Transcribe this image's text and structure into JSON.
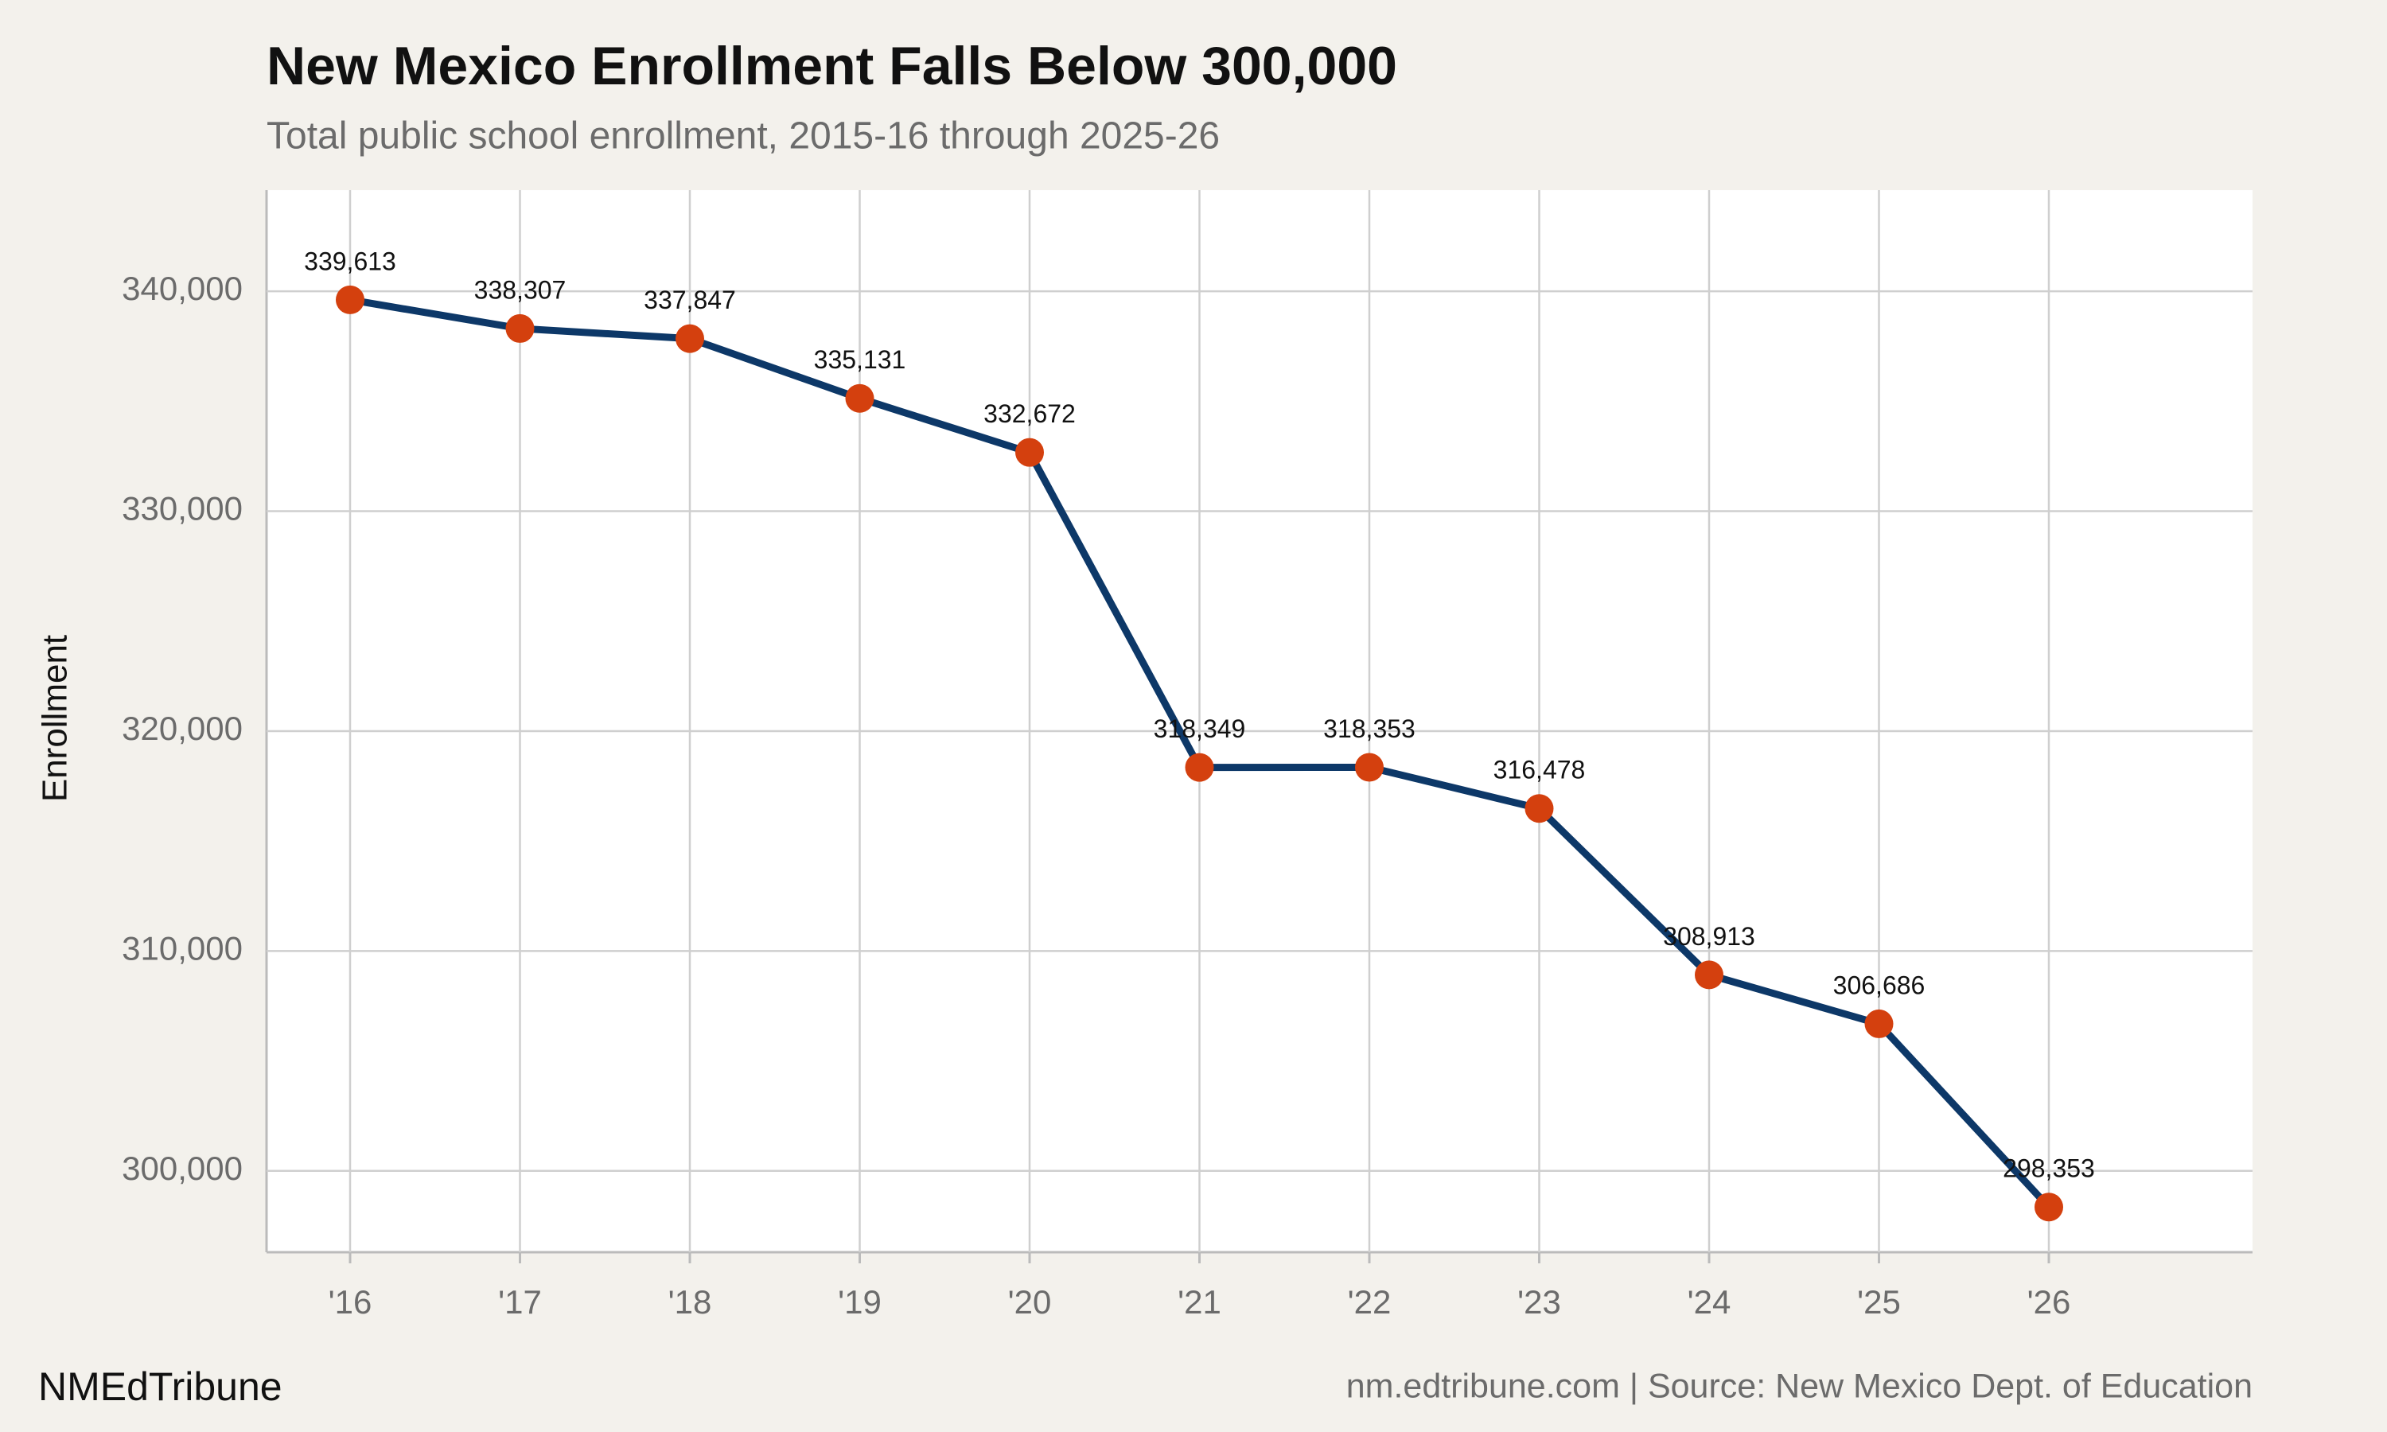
{
  "chart_data": {
    "type": "line",
    "title": "New Mexico Enrollment Falls Below 300,000",
    "subtitle": "Total public school enrollment, 2015-16 through 2025-26",
    "y_label": "Enrollment",
    "categories": [
      "'16",
      "'17",
      "'18",
      "'19",
      "'20",
      "'21",
      "'22",
      "'23",
      "'24",
      "'25",
      "'26"
    ],
    "series": [
      {
        "name": "Enrollment",
        "color": "#0d3868",
        "marker_color": "#d4400e",
        "values": [
          339613,
          338307,
          337847,
          335131,
          332672,
          318349,
          318353,
          316478,
          308913,
          306686,
          298353
        ],
        "value_labels": [
          "339,613",
          "338,307",
          "337,847",
          "335,131",
          "332,672",
          "318,349",
          "318,353",
          "316,478",
          "308,913",
          "306,686",
          "298,353"
        ]
      }
    ],
    "ylim": [
      296300,
      344600
    ],
    "yticks": [
      {
        "value": 300000,
        "label": "300,000"
      },
      {
        "value": 310000,
        "label": "310,000"
      },
      {
        "value": 320000,
        "label": "320,000"
      },
      {
        "value": 330000,
        "label": "330,000"
      },
      {
        "value": 340000,
        "label": "340,000"
      }
    ],
    "grid": true,
    "brand": "NMEdTribune",
    "source": "nm.edtribune.com | Source: New Mexico Dept. of Education"
  }
}
